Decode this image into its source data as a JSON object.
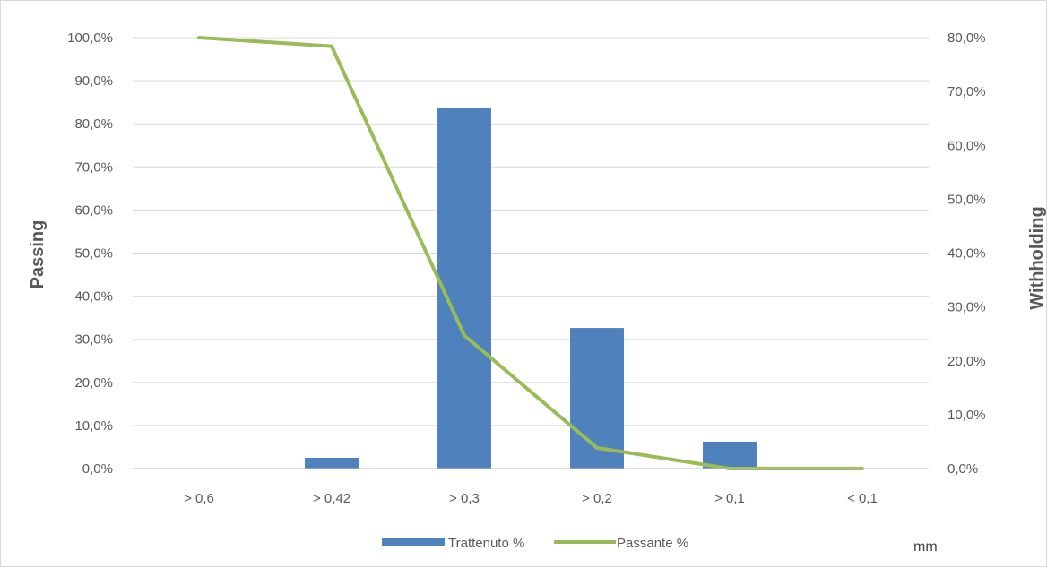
{
  "chart_data": {
    "type": "bar",
    "categories": [
      "> 0,6",
      "> 0,42",
      "> 0,3",
      "> 0,2",
      "> 0,1",
      "< 0,1"
    ],
    "series": [
      {
        "name": "Trattenuto %",
        "type": "bar",
        "axis": "right",
        "color": "#4f81bd",
        "values": [
          0.0,
          2.0,
          66.9,
          26.1,
          5.0,
          0.0
        ]
      },
      {
        "name": "Passante %",
        "type": "line",
        "axis": "left",
        "color": "#9bbb59",
        "values": [
          100.0,
          98.0,
          30.9,
          4.8,
          0.0,
          0.0
        ]
      }
    ],
    "ylabel": "Passing",
    "y2label": "Withholding",
    "xunit": "mm",
    "ylim": [
      0,
      100
    ],
    "y2lim": [
      0,
      80
    ],
    "yticks": [
      "0,0%",
      "10,0%",
      "20,0%",
      "30,0%",
      "40,0%",
      "50,0%",
      "60,0%",
      "70,0%",
      "80,0%",
      "90,0%",
      "100,0%"
    ],
    "y2ticks": [
      "0,0%",
      "10,0%",
      "20,0%",
      "30,0%",
      "40,0%",
      "50,0%",
      "60,0%",
      "70,0%",
      "80,0%"
    ],
    "grid": true,
    "legend": "bottom"
  }
}
